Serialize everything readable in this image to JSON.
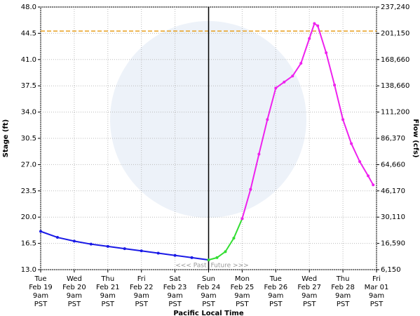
{
  "chart_data": {
    "type": "line",
    "ylabel": "Stage (ft)",
    "y2label": "Flow (cfs)",
    "xlabel": "Pacific Local Time",
    "annotations": [
      "<<< Past",
      "Future >>>"
    ],
    "now": 5,
    "flood_stage": 44.8,
    "flood_color": "#e8a020",
    "grid": true,
    "xlim": [
      0,
      10
    ],
    "xticks": [
      {
        "value": 0,
        "label": [
          "Tue",
          "Feb 19",
          "9am",
          "PST"
        ]
      },
      {
        "value": 1,
        "label": [
          "Wed",
          "Feb 20",
          "9am",
          "PST"
        ]
      },
      {
        "value": 2,
        "label": [
          "Thu",
          "Feb 21",
          "9am",
          "PST"
        ]
      },
      {
        "value": 3,
        "label": [
          "Fri",
          "Feb 22",
          "9am",
          "PST"
        ]
      },
      {
        "value": 4,
        "label": [
          "Sat",
          "Feb 23",
          "9am",
          "PST"
        ]
      },
      {
        "value": 5,
        "label": [
          "Sun",
          "Feb 24",
          "9am",
          "PST"
        ]
      },
      {
        "value": 6,
        "label": [
          "Mon",
          "Feb 25",
          "9am",
          "PST"
        ]
      },
      {
        "value": 7,
        "label": [
          "Tue",
          "Feb 26",
          "9am",
          "PST"
        ]
      },
      {
        "value": 8,
        "label": [
          "Wed",
          "Feb 27",
          "9am",
          "PST"
        ]
      },
      {
        "value": 9,
        "label": [
          "Thu",
          "Feb 28",
          "9am",
          "PST"
        ]
      },
      {
        "value": 10,
        "label": [
          "Fri",
          "Mar 01",
          "9am",
          "PST"
        ]
      }
    ],
    "ylim": [
      13,
      48
    ],
    "yticks": [
      {
        "value": 13,
        "label": "13.0"
      },
      16.5,
      {
        "value": 20,
        "label": "20.0"
      },
      23.5,
      {
        "value": 27,
        "label": "27.0"
      },
      30.5,
      {
        "value": 34,
        "label": "34.0"
      },
      37.5,
      {
        "value": 41,
        "label": "41.0"
      },
      44.5,
      {
        "value": 48,
        "label": "48.0"
      }
    ],
    "y2ticks": [
      {
        "value": 6150,
        "label": "6,150"
      },
      {
        "value": 16590,
        "label": "16,590"
      },
      {
        "value": 30110,
        "label": "30,110"
      },
      {
        "value": 46170,
        "label": "46,170"
      },
      {
        "value": 64660,
        "label": "64,660"
      },
      {
        "value": 86370,
        "label": "86,370"
      },
      {
        "value": 111200,
        "label": "111,200"
      },
      {
        "value": 138660,
        "label": "138,660"
      },
      {
        "value": 168660,
        "label": "168,660"
      },
      {
        "value": 201150,
        "label": "201,150"
      },
      {
        "value": 237240,
        "label": "237,240"
      }
    ],
    "series": [
      {
        "color": "#1a1ae6",
        "x": [
          0,
          0.5,
          1,
          1.5,
          2,
          2.5,
          3,
          3.5,
          4,
          4.5,
          5
        ],
        "values": [
          18.1,
          17.3,
          16.8,
          16.4,
          16.1,
          15.8,
          15.5,
          15.2,
          14.9,
          14.6,
          14.3
        ]
      },
      {
        "color": "#33dd33",
        "x": [
          5,
          5.25,
          5.5,
          5.75,
          6
        ],
        "values": [
          14.3,
          14.6,
          15.4,
          17.2,
          19.8
        ]
      },
      {
        "color": "#ee22ee",
        "x": [
          6,
          6.25,
          6.5,
          6.75,
          7,
          7.25,
          7.5,
          7.75,
          8,
          8.15,
          8.25,
          8.5,
          8.75,
          9,
          9.25,
          9.5,
          9.75,
          9.9
        ],
        "values": [
          19.8,
          23.7,
          28.4,
          33.0,
          37.2,
          38.0,
          38.8,
          40.5,
          43.8,
          45.8,
          45.5,
          41.9,
          37.6,
          33.0,
          29.8,
          27.4,
          25.5,
          24.3
        ]
      }
    ]
  }
}
